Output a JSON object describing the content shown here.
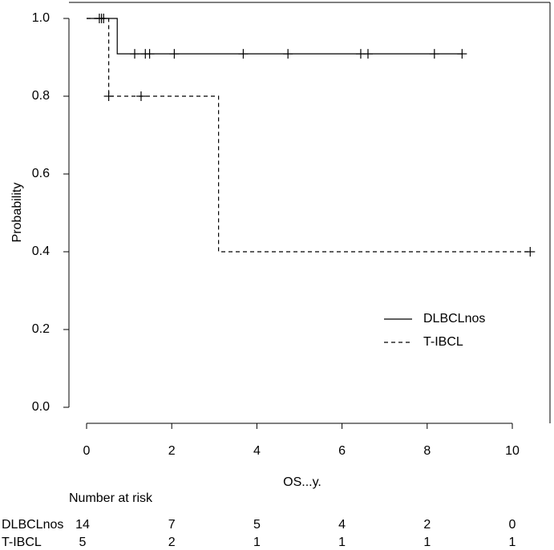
{
  "chart_data": {
    "type": "line",
    "subtype": "kaplan-meier step curve",
    "title": "",
    "xlabel": "OS...y.",
    "ylabel": "Probability",
    "xlim": [
      0,
      10.5
    ],
    "ylim": [
      0.0,
      1.0
    ],
    "x_ticks": [
      0,
      2,
      4,
      6,
      8,
      10
    ],
    "y_ticks": [
      0.0,
      0.2,
      0.4,
      0.6,
      0.8,
      1.0
    ],
    "x_tick_labels": [
      "0",
      "2",
      "4",
      "6",
      "8",
      "10"
    ],
    "y_tick_labels": [
      "0.0",
      "0.2",
      "0.4",
      "0.6",
      "0.8",
      "1.0"
    ],
    "grid": false,
    "legend_position": "right",
    "series": [
      {
        "name": "DLBCLnos",
        "line_style": "solid",
        "steps": [
          [
            0,
            1.0
          ],
          [
            0.72,
            0.909
          ]
        ],
        "end_x": 8.82,
        "censor_times": [
          0.3,
          0.35,
          0.4,
          1.13,
          1.38,
          1.48,
          2.06,
          3.68,
          4.73,
          6.44,
          6.61,
          8.17,
          8.82
        ]
      },
      {
        "name": "T-IBCL",
        "line_style": "dashed",
        "steps": [
          [
            0,
            1.0
          ],
          [
            0.52,
            0.8
          ],
          [
            3.1,
            0.4
          ]
        ],
        "end_x": 10.42,
        "censor_times": [
          0.52,
          1.28,
          10.42
        ]
      }
    ],
    "risk_table": {
      "title": "Number at risk",
      "times": [
        0,
        2,
        4,
        6,
        8,
        10
      ],
      "rows": [
        {
          "name": "DLBCLnos",
          "values": [
            "14",
            "7",
            "5",
            "4",
            "2",
            "0"
          ]
        },
        {
          "name": "T-IBCL",
          "values": [
            "5",
            "2",
            "1",
            "1",
            "1",
            "1"
          ]
        }
      ]
    }
  }
}
